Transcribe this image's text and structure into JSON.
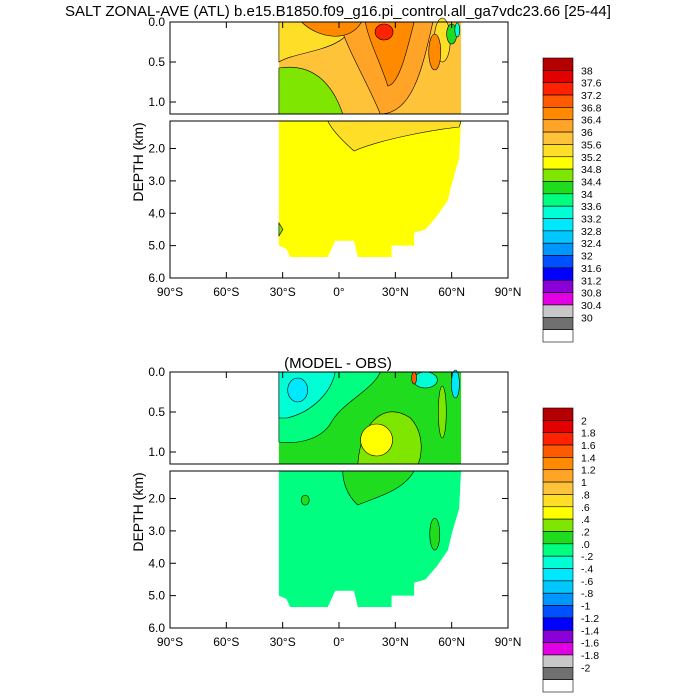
{
  "chart_data": [
    {
      "type": "heatmap",
      "title": "SALT ZONAL-AVE (ATL) b.e15.B1850.f09_g16.pi_control.all_ga7vdc23.66 [25-44]",
      "ylabel": "DEPTH (km)",
      "xlim": [
        -90,
        90
      ],
      "x_ticks": [
        "90°S",
        "60°S",
        "30°S",
        "0°",
        "30°N",
        "60°N",
        "90°N"
      ],
      "upper_panel": {
        "ylim": [
          1.15,
          0.0
        ],
        "y_ticks": [
          "0.0",
          "0.5",
          "1.0"
        ]
      },
      "lower_panel": {
        "ylim": [
          6.0,
          1.15
        ],
        "y_ticks": [
          "2.0",
          "3.0",
          "4.0",
          "5.0",
          "6.0"
        ]
      },
      "colorbar_labels": [
        "38",
        "37.6",
        "37.2",
        "36.8",
        "36.4",
        "36",
        "35.6",
        "35.2",
        "34.8",
        "34.4",
        "34",
        "33.6",
        "33.2",
        "32.8",
        "32.4",
        "32",
        "31.6",
        "31.2",
        "30.8",
        "30.4",
        "30"
      ],
      "colorbar_colors": [
        "#b40000",
        "#e20000",
        "#ff2200",
        "#ff5a00",
        "#ff8a00",
        "#ffa426",
        "#ffc33a",
        "#ffde28",
        "#ffff00",
        "#7ee600",
        "#1fdc1f",
        "#00ff80",
        "#00ffd4",
        "#00e8ff",
        "#00c8ff",
        "#0096ff",
        "#0050ff",
        "#0000ff",
        "#8a00d8",
        "#e400e4",
        "#c8c8c8",
        "#707070",
        "#ffffff"
      ]
    },
    {
      "type": "heatmap",
      "title": "(MODEL - OBS)",
      "ylabel": "DEPTH (km)",
      "xlim": [
        -90,
        90
      ],
      "x_ticks": [
        "90°S",
        "60°S",
        "30°S",
        "0°",
        "30°N",
        "60°N",
        "90°N"
      ],
      "upper_panel": {
        "ylim": [
          1.15,
          0.0
        ],
        "y_ticks": [
          "0.0",
          "0.5",
          "1.0"
        ]
      },
      "lower_panel": {
        "ylim": [
          6.0,
          1.15
        ],
        "y_ticks": [
          "2.0",
          "3.0",
          "4.0",
          "5.0",
          "6.0"
        ]
      },
      "colorbar_labels": [
        "2",
        "1.8",
        "1.6",
        "1.4",
        "1.2",
        "1",
        ".8",
        ".6",
        ".4",
        ".2",
        ".0",
        "-.2",
        "-.4",
        "-.6",
        "-.8",
        "-1",
        "-1.2",
        "-1.4",
        "-1.6",
        "-1.8",
        "-2"
      ],
      "colorbar_colors": [
        "#b40000",
        "#e20000",
        "#ff2200",
        "#ff5a00",
        "#ff8a00",
        "#ffa426",
        "#ffc33a",
        "#ffde28",
        "#ffff00",
        "#7ee600",
        "#1fdc1f",
        "#00ff80",
        "#00ffd4",
        "#00e8ff",
        "#00c8ff",
        "#0096ff",
        "#0050ff",
        "#0000ff",
        "#8a00d8",
        "#e400e4",
        "#c8c8c8",
        "#707070",
        "#ffffff"
      ]
    }
  ]
}
